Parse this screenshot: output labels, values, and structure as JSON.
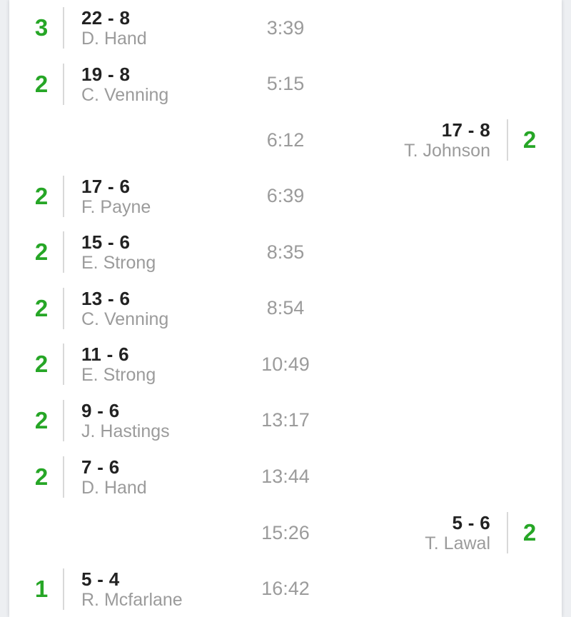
{
  "page": {
    "description": "match-scoring-timeline",
    "background_color": "#edeff2",
    "card_color": "#ffffff",
    "accent_green": "#26a626",
    "score_text_color": "#222222",
    "muted_text_color": "#9b9b9b"
  },
  "events": [
    {
      "side": "home",
      "points": "3",
      "score": "22 - 8",
      "player": "D. Hand",
      "time": "3:39"
    },
    {
      "side": "home",
      "points": "2",
      "score": "19 - 8",
      "player": "C. Venning",
      "time": "5:15"
    },
    {
      "side": "away",
      "points": "2",
      "score": "17 - 8",
      "player": "T. Johnson",
      "time": "6:12"
    },
    {
      "side": "home",
      "points": "2",
      "score": "17 - 6",
      "player": "F. Payne",
      "time": "6:39"
    },
    {
      "side": "home",
      "points": "2",
      "score": "15 - 6",
      "player": "E. Strong",
      "time": "8:35"
    },
    {
      "side": "home",
      "points": "2",
      "score": "13 - 6",
      "player": "C. Venning",
      "time": "8:54"
    },
    {
      "side": "home",
      "points": "2",
      "score": "11 - 6",
      "player": "E. Strong",
      "time": "10:49"
    },
    {
      "side": "home",
      "points": "2",
      "score": "9 - 6",
      "player": "J. Hastings",
      "time": "13:17"
    },
    {
      "side": "home",
      "points": "2",
      "score": "7 - 6",
      "player": "D. Hand",
      "time": "13:44"
    },
    {
      "side": "away",
      "points": "2",
      "score": "5 - 6",
      "player": "T. Lawal",
      "time": "15:26"
    },
    {
      "side": "home",
      "points": "1",
      "score": "5 - 4",
      "player": "R. Mcfarlane",
      "time": "16:42"
    }
  ]
}
